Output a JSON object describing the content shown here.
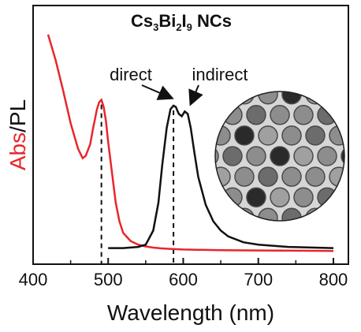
{
  "chart_data": {
    "type": "line",
    "title": {
      "main": "Cs",
      "sub1": "3",
      "mid": "Bi",
      "sub2": "2",
      "mid2": "I",
      "sub3": "9",
      "tail": " NCs"
    },
    "xlabel": "Wavelength (nm)",
    "ylabel": {
      "part1": "Abs",
      "sep": "/",
      "part2": "PL"
    },
    "xlim": [
      400,
      820
    ],
    "ylim": [
      0,
      1
    ],
    "xticks": [
      400,
      500,
      600,
      700,
      800
    ],
    "xtick_labels": [
      "400",
      "500",
      "600",
      "700",
      "800"
    ],
    "grid": false,
    "series": [
      {
        "name": "Abs",
        "color": "#e8262a",
        "x": [
          420,
          430,
          440,
          450,
          460,
          466,
          470,
          476,
          480,
          485,
          488,
          491,
          494,
          497,
          500,
          505,
          510,
          515,
          520,
          530,
          540,
          550,
          560,
          570,
          580,
          600,
          650,
          700,
          750,
          800
        ],
        "y": [
          0.94,
          0.83,
          0.7,
          0.56,
          0.45,
          0.41,
          0.42,
          0.47,
          0.54,
          0.62,
          0.65,
          0.66,
          0.63,
          0.57,
          0.48,
          0.35,
          0.22,
          0.14,
          0.09,
          0.055,
          0.04,
          0.032,
          0.027,
          0.024,
          0.022,
          0.019,
          0.016,
          0.015,
          0.014,
          0.013
        ]
      },
      {
        "name": "PL",
        "color": "#111111",
        "x": [
          500,
          520,
          540,
          550,
          560,
          567,
          572,
          578,
          583,
          587,
          590,
          594,
          598,
          602,
          606,
          610,
          615,
          620,
          630,
          640,
          650,
          660,
          680,
          700,
          740,
          800
        ],
        "y": [
          0.025,
          0.025,
          0.03,
          0.04,
          0.1,
          0.22,
          0.38,
          0.54,
          0.62,
          0.635,
          0.63,
          0.6,
          0.59,
          0.61,
          0.6,
          0.54,
          0.43,
          0.33,
          0.21,
          0.14,
          0.1,
          0.075,
          0.05,
          0.04,
          0.03,
          0.025
        ]
      }
    ],
    "vlines": [
      491,
      587
    ],
    "annotations": [
      {
        "text": "direct",
        "target_x": 587
      },
      {
        "text": "indirect",
        "target_x": 604
      }
    ]
  }
}
